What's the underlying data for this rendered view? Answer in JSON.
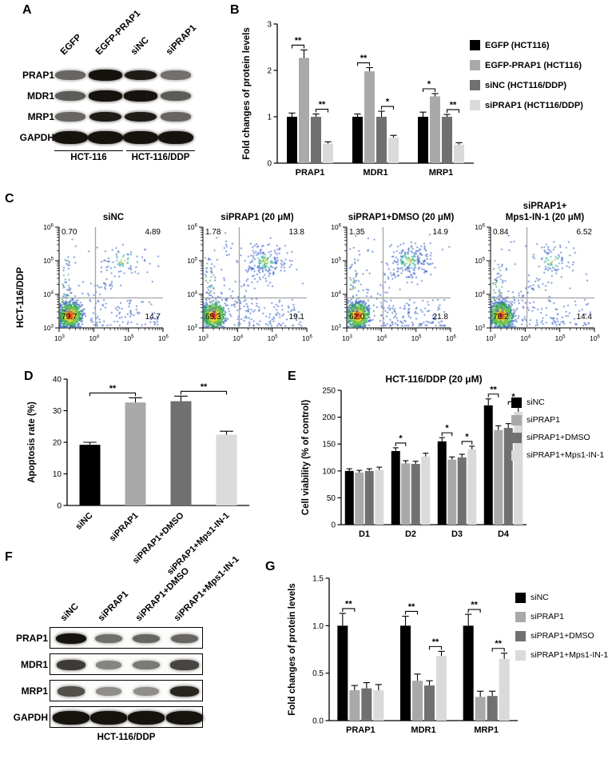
{
  "panel_a": {
    "label": "A",
    "lane_labels": [
      "EGFP",
      "EGFP-PRAP1",
      "siNC",
      "siPRAP1"
    ],
    "row_labels": [
      "PRAP1",
      "MDR1",
      "MRP1",
      "GAPDH"
    ],
    "band_intensities": [
      [
        0.55,
        0.95,
        0.9,
        0.5
      ],
      [
        0.6,
        0.95,
        0.95,
        0.6
      ],
      [
        0.55,
        0.9,
        0.9,
        0.55
      ],
      [
        0.95,
        0.95,
        0.95,
        0.95
      ]
    ],
    "group_labels": [
      "HCT-116",
      "HCT-116/DDP"
    ]
  },
  "panel_b": {
    "label": "B"
  },
  "panel_c": {
    "label": "C",
    "row_label": "HCT-116/DDP"
  },
  "panel_d": {
    "label": "D"
  },
  "panel_e": {
    "label": "E"
  },
  "panel_f": {
    "label": "F",
    "lane_labels": [
      "siNC",
      "siPRAP1",
      "siPRAP1+DMSO",
      "siPRAP1+Mps1-IN-1"
    ],
    "row_labels": [
      "PRAP1",
      "MDR1",
      "MRP1",
      "GAPDH"
    ],
    "band_intensities": [
      [
        0.97,
        0.5,
        0.55,
        0.55
      ],
      [
        0.75,
        0.4,
        0.45,
        0.7
      ],
      [
        0.65,
        0.35,
        0.35,
        0.85
      ],
      [
        0.95,
        0.95,
        0.95,
        0.95
      ]
    ],
    "bottom_label": "HCT-116/DDP"
  },
  "panel_g": {
    "label": "G"
  },
  "chart_data": [
    {
      "panel": "B",
      "type": "bar",
      "categories": [
        "PRAP1",
        "MDR1",
        "MRP1"
      ],
      "series": [
        {
          "name": "EGFP (HCT116)",
          "color": "#000000",
          "values": [
            1.0,
            1.0,
            1.0
          ],
          "errors": [
            0.08,
            0.06,
            0.1
          ]
        },
        {
          "name": "EGFP-PRAP1 (HCT116)",
          "color": "#a9a9a9",
          "values": [
            2.27,
            1.98,
            1.44
          ],
          "errors": [
            0.17,
            0.08,
            0.06
          ]
        },
        {
          "name": "siNC (HCT116/DDP)",
          "color": "#707070",
          "values": [
            1.0,
            1.0,
            1.0
          ],
          "errors": [
            0.06,
            0.12,
            0.05
          ]
        },
        {
          "name": "siPRAP1 (HCT116/DDP)",
          "color": "#dadada",
          "values": [
            0.42,
            0.55,
            0.4
          ],
          "errors": [
            0.04,
            0.05,
            0.04
          ]
        }
      ],
      "ylabel": "Fold changes of protein levels",
      "ylim": [
        0,
        3
      ],
      "yticks": [
        0,
        1,
        2,
        3
      ],
      "sig": [
        {
          "cat": 0,
          "pair": [
            0,
            1
          ],
          "label": "**"
        },
        {
          "cat": 0,
          "pair": [
            2,
            3
          ],
          "label": "**"
        },
        {
          "cat": 1,
          "pair": [
            0,
            1
          ],
          "label": "**"
        },
        {
          "cat": 1,
          "pair": [
            2,
            3
          ],
          "label": "*"
        },
        {
          "cat": 2,
          "pair": [
            0,
            1
          ],
          "label": "*"
        },
        {
          "cat": 2,
          "pair": [
            2,
            3
          ],
          "label": "**"
        }
      ],
      "legend_position": "right"
    },
    {
      "panel": "C",
      "type": "scatter",
      "subtype": "flow-cytometry-apoptosis",
      "row_label": "HCT-116/DDP",
      "axis_exponents": [
        3,
        4,
        5,
        6
      ],
      "axis_scale": "log10",
      "plots": [
        {
          "title_lines": [
            "siNC"
          ],
          "quadrants": {
            "upper_left": "0.70",
            "upper_right": "4.89",
            "lower_left": "79.7",
            "lower_right": "14.7"
          }
        },
        {
          "title_lines": [
            "siPRAP1 (20 μM)"
          ],
          "quadrants": {
            "upper_left": "1.78",
            "upper_right": "13.8",
            "lower_left": "65.3",
            "lower_right": "19.1"
          }
        },
        {
          "title_lines": [
            "siPRAP1+DMSO (20 μM)"
          ],
          "quadrants": {
            "upper_left": "1.35",
            "upper_right": "14.9",
            "lower_left": "62.0",
            "lower_right": "21.8"
          }
        },
        {
          "title_lines": [
            "siPRAP1+",
            "Mps1-IN-1 (20 μM)"
          ],
          "quadrants": {
            "upper_left": "0.84",
            "upper_right": "6.52",
            "lower_left": "78.2",
            "lower_right": "14.4"
          }
        }
      ]
    },
    {
      "panel": "D",
      "type": "bar",
      "categories": [
        "siNC",
        "siPRAP1",
        "siPRAP1+DMSO",
        "siPRAP1+Mps1-IN-1"
      ],
      "series": [
        {
          "name": "Apoptosis rate",
          "colors": [
            "#000000",
            "#a9a9a9",
            "#707070",
            "#dadada"
          ],
          "values": [
            19.2,
            32.6,
            33.0,
            22.4
          ],
          "errors": [
            0.8,
            1.5,
            1.6,
            1.1
          ]
        }
      ],
      "ylabel": "Apoptosis rate (%)",
      "ylim": [
        0,
        40
      ],
      "yticks": [
        0,
        10,
        20,
        30,
        40
      ],
      "xtick_rotation": 45,
      "sig": [
        {
          "pair": [
            0,
            1
          ],
          "label": "**"
        },
        {
          "pair": [
            2,
            3
          ],
          "label": "**"
        }
      ]
    },
    {
      "panel": "E",
      "type": "bar",
      "title": "HCT-116/DDP (20 μM)",
      "categories": [
        "D1",
        "D2",
        "D3",
        "D4"
      ],
      "series": [
        {
          "name": "siNC",
          "color": "#000000",
          "values": [
            100,
            137,
            155,
            222
          ],
          "errors": [
            4,
            6,
            7,
            12
          ]
        },
        {
          "name": "siPRAP1",
          "color": "#a9a9a9",
          "values": [
            97,
            114,
            121,
            176
          ],
          "errors": [
            4,
            5,
            5,
            8
          ]
        },
        {
          "name": "siPRAP1+DMSO",
          "color": "#707070",
          "values": [
            100,
            113,
            125,
            180
          ],
          "errors": [
            4,
            5,
            6,
            8
          ]
        },
        {
          "name": "siPRAP1+Mps1-IN-1",
          "color": "#dadada",
          "values": [
            102,
            127,
            140,
            210
          ],
          "errors": [
            5,
            6,
            6,
            10
          ]
        }
      ],
      "ylabel": "Cell viability (% of control)",
      "ylim": [
        0,
        250
      ],
      "yticks": [
        0,
        50,
        100,
        150,
        200,
        250
      ],
      "sig": [
        {
          "cat": 1,
          "pair": [
            0,
            1
          ],
          "label": "*"
        },
        {
          "cat": 2,
          "pair": [
            0,
            1
          ],
          "label": "*"
        },
        {
          "cat": 2,
          "pair": [
            2,
            3
          ],
          "label": "*"
        },
        {
          "cat": 3,
          "pair": [
            0,
            1
          ],
          "label": "**"
        },
        {
          "cat": 3,
          "pair": [
            2,
            3
          ],
          "label": "*"
        }
      ],
      "legend_position": "right"
    },
    {
      "panel": "G",
      "type": "bar",
      "categories": [
        "PRAP1",
        "MDR1",
        "MRP1"
      ],
      "series": [
        {
          "name": "siNC",
          "color": "#000000",
          "values": [
            1.0,
            1.0,
            1.0
          ],
          "errors": [
            0.13,
            0.1,
            0.12
          ]
        },
        {
          "name": "siPRAP1",
          "color": "#a9a9a9",
          "values": [
            0.32,
            0.42,
            0.25
          ],
          "errors": [
            0.05,
            0.07,
            0.06
          ]
        },
        {
          "name": "siPRAP1+DMSO",
          "color": "#707070",
          "values": [
            0.34,
            0.37,
            0.26
          ],
          "errors": [
            0.06,
            0.05,
            0.05
          ]
        },
        {
          "name": "siPRAP1+Mps1-IN-1",
          "color": "#dadada",
          "values": [
            0.32,
            0.68,
            0.65
          ],
          "errors": [
            0.06,
            0.05,
            0.06
          ]
        }
      ],
      "ylabel": "Fold changes of protein levels",
      "ylim": [
        0,
        1.5
      ],
      "yticks": [
        0,
        0.5,
        1,
        1.5
      ],
      "ytick_labels": [
        "0.0",
        "0.5",
        "1.0",
        "1.5"
      ],
      "sig": [
        {
          "cat": 0,
          "pair": [
            0,
            1
          ],
          "label": "**"
        },
        {
          "cat": 1,
          "pair": [
            0,
            1
          ],
          "label": "**"
        },
        {
          "cat": 1,
          "pair": [
            2,
            3
          ],
          "label": "**"
        },
        {
          "cat": 2,
          "pair": [
            0,
            1
          ],
          "label": "**"
        },
        {
          "cat": 2,
          "pair": [
            2,
            3
          ],
          "label": "**"
        }
      ],
      "legend_position": "right"
    }
  ]
}
